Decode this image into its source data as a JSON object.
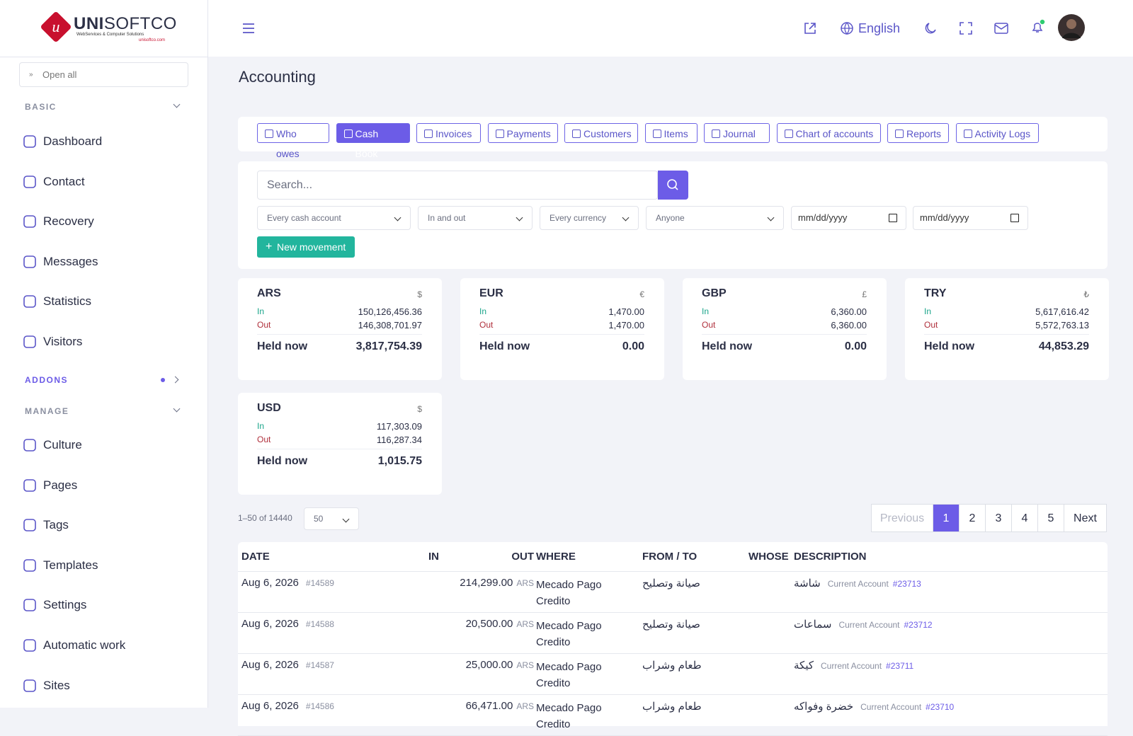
{
  "logo": {
    "brand_bold": "UNI",
    "brand_light": "SOFTCO",
    "tagline": "WebServices & Computer Solutions",
    "url": "unisoftco.com"
  },
  "sidebar": {
    "open_all": "Open all",
    "groups": [
      {
        "title": "BASIC",
        "items": [
          "Dashboard",
          "Contact",
          "Recovery",
          "Messages",
          "Statistics",
          "Visitors"
        ]
      },
      {
        "title": "ADDONS",
        "items": []
      },
      {
        "title": "MANAGE",
        "items": [
          "Culture",
          "Pages",
          "Tags",
          "Templates",
          "Settings",
          "Automatic work",
          "Sites"
        ]
      }
    ]
  },
  "topbar": {
    "language": "English"
  },
  "page": {
    "title": "Accounting"
  },
  "tabs": [
    {
      "label": "Who owes",
      "active": false
    },
    {
      "label": "Cash Book",
      "active": true
    },
    {
      "label": "Invoices",
      "active": false
    },
    {
      "label": "Payments",
      "active": false
    },
    {
      "label": "Customers",
      "active": false
    },
    {
      "label": "Items",
      "active": false
    },
    {
      "label": "Journal",
      "active": false
    },
    {
      "label": "Chart of accounts",
      "active": false
    },
    {
      "label": "Reports",
      "active": false
    },
    {
      "label": "Activity Logs",
      "active": false
    }
  ],
  "filters": {
    "search_placeholder": "Search...",
    "selects": [
      "Every cash account",
      "In and out",
      "Every currency",
      "Anyone"
    ],
    "dates": [
      "mm/dd/yyyy",
      "mm/dd/yyyy"
    ],
    "new_button": "New movement"
  },
  "balances": [
    {
      "currency": "ARS",
      "symbol": "$",
      "in_label": "In",
      "in": "150,126,456.36",
      "out_label": "Out",
      "out": "146,308,701.97",
      "held_label": "Held now",
      "held": "3,817,754.39"
    },
    {
      "currency": "EUR",
      "symbol": "€",
      "in_label": "In",
      "in": "1,470.00",
      "out_label": "Out",
      "out": "1,470.00",
      "held_label": "Held now",
      "held": "0.00"
    },
    {
      "currency": "GBP",
      "symbol": "£",
      "in_label": "In",
      "in": "6,360.00",
      "out_label": "Out",
      "out": "6,360.00",
      "held_label": "Held now",
      "held": "0.00"
    },
    {
      "currency": "TRY",
      "symbol": "₺",
      "in_label": "In",
      "in": "5,617,616.42",
      "out_label": "Out",
      "out": "5,572,763.13",
      "held_label": "Held now",
      "held": "44,853.29"
    },
    {
      "currency": "USD",
      "symbol": "$",
      "in_label": "In",
      "in": "117,303.09",
      "out_label": "Out",
      "out": "116,287.34",
      "held_label": "Held now",
      "held": "1,015.75"
    }
  ],
  "pagination": {
    "range": "1–50 of 14440",
    "page_size": "50",
    "previous": "Previous",
    "pages": [
      "1",
      "2",
      "3",
      "4",
      "5"
    ],
    "current_index": 0,
    "next": "Next"
  },
  "table": {
    "headers": [
      "DATE",
      "IN",
      "OUT",
      "WHERE",
      "FROM / TO",
      "WHOSE",
      "DESCRIPTION"
    ],
    "rows": [
      {
        "date": "Aug 6, 2026",
        "id": "#14589",
        "out": "214,299.00",
        "currency": "ARS",
        "where": "Mecado Pago Credito",
        "from_to": "صيانة وتصليح",
        "description": "شاشة",
        "account": "Current Account",
        "account_id": "#23713"
      },
      {
        "date": "Aug 6, 2026",
        "id": "#14588",
        "out": "20,500.00",
        "currency": "ARS",
        "where": "Mecado Pago Credito",
        "from_to": "صيانة وتصليح",
        "description": "سماعات",
        "account": "Current Account",
        "account_id": "#23712"
      },
      {
        "date": "Aug 6, 2026",
        "id": "#14587",
        "out": "25,000.00",
        "currency": "ARS",
        "where": "Mecado Pago Credito",
        "from_to": "طعام وشراب",
        "description": "كيكة",
        "account": "Current Account",
        "account_id": "#23711"
      },
      {
        "date": "Aug 6, 2026",
        "id": "#14586",
        "out": "66,471.00",
        "currency": "ARS",
        "where": "Mecado Pago Credito",
        "from_to": "طعام وشراب",
        "description": "خضرة وفواكه",
        "account": "Current Account",
        "account_id": "#23710"
      }
    ]
  }
}
